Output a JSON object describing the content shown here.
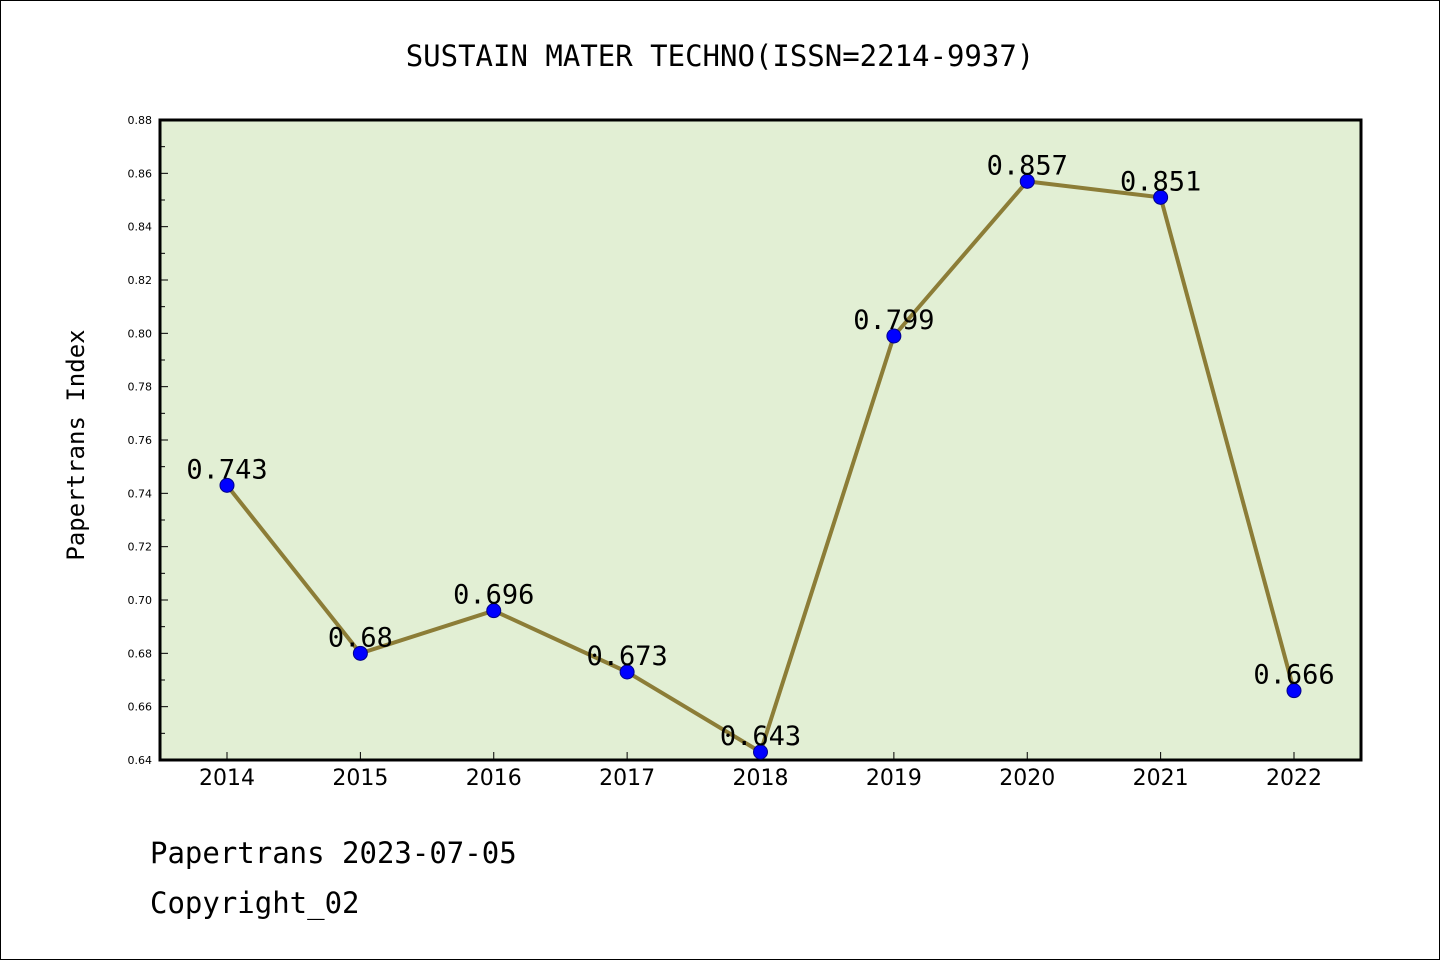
{
  "chart_data": {
    "type": "line",
    "title": "SUSTAIN MATER TECHNO(ISSN=2214-9937)",
    "xlabel": "",
    "ylabel": "Papertrans Index",
    "categories": [
      "2014",
      "2015",
      "2016",
      "2017",
      "2018",
      "2019",
      "2020",
      "2021",
      "2022"
    ],
    "series": [
      {
        "name": "Papertrans Index",
        "values": [
          0.743,
          0.68,
          0.696,
          0.673,
          0.643,
          0.799,
          0.857,
          0.851,
          0.666
        ],
        "labels": [
          "0.743",
          "0.68",
          "0.696",
          "0.673",
          "0.643",
          "0.799",
          "0.857",
          "0.851",
          "0.666"
        ]
      }
    ],
    "ylim": [
      0.64,
      0.88
    ],
    "yticks": [
      "0.64",
      "0.66",
      "0.68",
      "0.70",
      "0.72",
      "0.74",
      "0.76",
      "0.78",
      "0.80",
      "0.82",
      "0.84",
      "0.86",
      "0.88"
    ],
    "colors": {
      "plot_background": "#e2efd4",
      "line": "#8c7d37",
      "marker": "#0000ff",
      "marker_edge": "#00008b"
    },
    "grid": false
  },
  "footer": {
    "line1": "Papertrans 2023-07-05",
    "line2": "Copyright_02"
  }
}
